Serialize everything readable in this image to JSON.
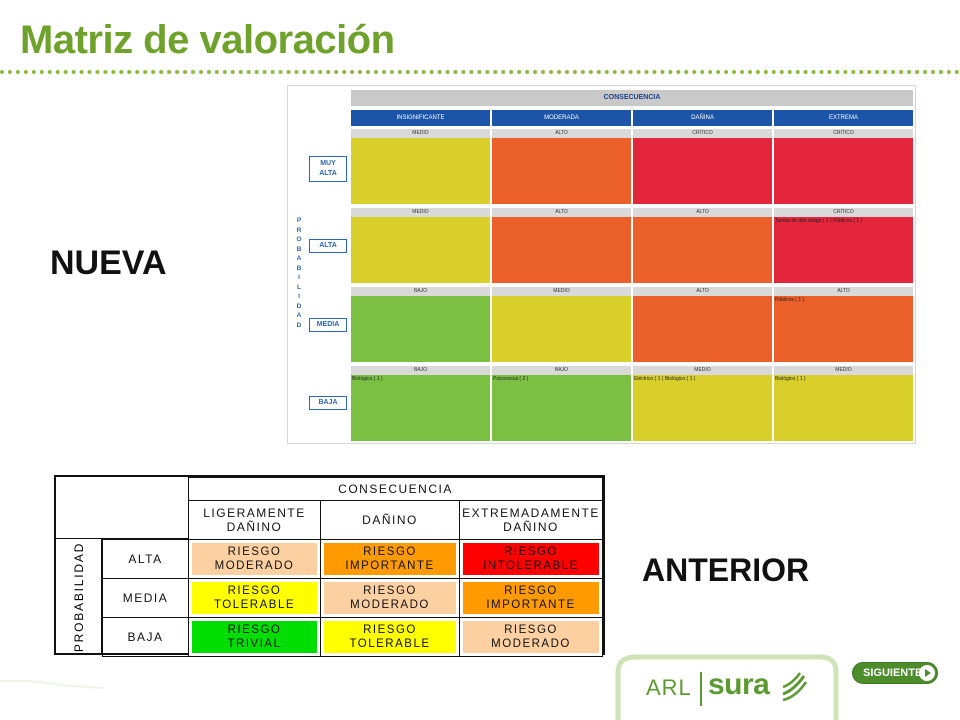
{
  "slide": {
    "title": "Matriz de valoración",
    "label_new": "NUEVA",
    "label_old": "ANTERIOR"
  },
  "colors": {
    "title_green": "#6ea22b",
    "low_green": "#7bc043",
    "medium_yellow": "#d8cf2a",
    "high_orange": "#eb5f2a",
    "critical_red": "#e3263c",
    "header_blue": "#1c54a8",
    "old_moderado": "#fcd0a0",
    "old_importante": "#ff9a00",
    "old_intolerable": "#ff0000",
    "old_tolerable": "#ffff00",
    "old_trivial": "#00dd00"
  },
  "new_matrix": {
    "consequence_header": "CONSECUENCIA",
    "probability_label": [
      "P",
      "R",
      "O",
      "B",
      "A",
      "B",
      "I",
      "L",
      "I",
      "D",
      "A",
      "D"
    ],
    "columns": [
      "INSIGNIFICANTE",
      "MODERADA",
      "DAÑINA",
      "EXTREMA"
    ],
    "rows": [
      {
        "label_lines": [
          "MUY",
          "ALTA"
        ],
        "cells": [
          {
            "level": "MEDIO",
            "color": "#d8cf2a",
            "note": ""
          },
          {
            "level": "ALTO",
            "color": "#eb5f2a",
            "note": ""
          },
          {
            "level": "CRÍTICO",
            "color": "#e3263c",
            "note": ""
          },
          {
            "level": "CRÍTICO",
            "color": "#e3263c",
            "note": ""
          }
        ]
      },
      {
        "label_lines": [
          "ALTA"
        ],
        "cells": [
          {
            "level": "MEDIO",
            "color": "#d8cf2a",
            "note": ""
          },
          {
            "level": "ALTO",
            "color": "#eb5f2a",
            "note": ""
          },
          {
            "level": "ALTO",
            "color": "#eb5f2a",
            "note": ""
          },
          {
            "level": "CRÍTICO",
            "color": "#e3263c",
            "note": "Tareas de alto riesgo ( 1 ) Públicos ( 1 )"
          }
        ]
      },
      {
        "label_lines": [
          "MEDIA"
        ],
        "cells": [
          {
            "level": "BAJO",
            "color": "#7bc043",
            "note": ""
          },
          {
            "level": "MEDIO",
            "color": "#d8cf2a",
            "note": ""
          },
          {
            "level": "ALTO",
            "color": "#eb5f2a",
            "note": ""
          },
          {
            "level": "ALTO",
            "color": "#eb5f2a",
            "note": "Públicos ( 1 )"
          }
        ]
      },
      {
        "label_lines": [
          "BAJA"
        ],
        "cells": [
          {
            "level": "BAJO",
            "color": "#7bc043",
            "note": "Biológico ( 1 )"
          },
          {
            "level": "BAJO",
            "color": "#7bc043",
            "note": "Psicosocial ( 2 )"
          },
          {
            "level": "MEDIO",
            "color": "#d8cf2a",
            "note": "Eléctrico ( 1 ) Biológico ( 1 )"
          },
          {
            "level": "MEDIO",
            "color": "#d8cf2a",
            "note": "Biológico ( 1 )"
          }
        ]
      }
    ]
  },
  "old_matrix": {
    "consequence_header": "CONSECUENCIA",
    "probability_label": "PROBABILIDAD",
    "columns": [
      [
        "LIGERAMENTE",
        "DAÑINO"
      ],
      [
        "DAÑINO"
      ],
      [
        "EXTREMADAMENTE",
        "DAÑINO"
      ]
    ],
    "rows": [
      {
        "label": "ALTA",
        "cells": [
          {
            "lines": [
              "RIESGO",
              "MODERADO"
            ],
            "color": "#fcd0a0"
          },
          {
            "lines": [
              "RIESGO",
              "IMPORTANTE"
            ],
            "color": "#ff9a00"
          },
          {
            "lines": [
              "RIESGO",
              "INTOLERABLE"
            ],
            "color": "#ff0000"
          }
        ]
      },
      {
        "label": "MEDIA",
        "cells": [
          {
            "lines": [
              "RIESGO",
              "TOLERABLE"
            ],
            "color": "#ffff00"
          },
          {
            "lines": [
              "RIESGO",
              "MODERADO"
            ],
            "color": "#fcd0a0"
          },
          {
            "lines": [
              "RIESGO",
              "IMPORTANTE"
            ],
            "color": "#ff9a00"
          }
        ]
      },
      {
        "label": "BAJA",
        "cells": [
          {
            "lines": [
              "RIESGO",
              "TRIVIAL"
            ],
            "color": "#00dd00"
          },
          {
            "lines": [
              "RIESGO",
              "TOLERABLE"
            ],
            "color": "#ffff00"
          },
          {
            "lines": [
              "RIESGO",
              "MODERADO"
            ],
            "color": "#fcd0a0"
          }
        ]
      }
    ]
  },
  "footer": {
    "arl": "ARL",
    "brand": "sura",
    "next_label": "SIGUIENTE",
    "next_icon": "chevron-right-icon"
  }
}
